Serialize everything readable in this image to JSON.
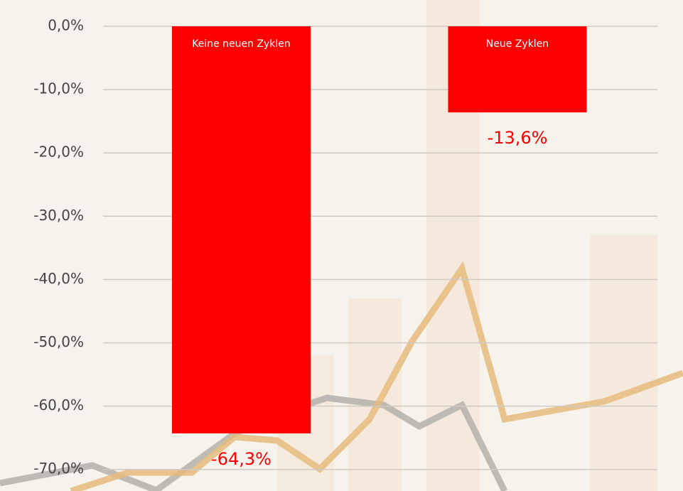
{
  "chart_data": {
    "type": "bar",
    "categories": [
      "Keine neuen Zyklen",
      "Neue Zyklen"
    ],
    "values": [
      -64.3,
      -13.6
    ],
    "value_labels": [
      "-64,3%",
      "-13,6%"
    ],
    "color": "#ff0000",
    "ylim": [
      -73.4,
      0
    ],
    "yticks": [
      {
        "value": 0,
        "label": "0,0%"
      },
      {
        "value": -10,
        "label": "-10,0%"
      },
      {
        "value": -20,
        "label": "-20,0%"
      },
      {
        "value": -30,
        "label": "-30,0%"
      },
      {
        "value": -40,
        "label": "-40,0%"
      },
      {
        "value": -50,
        "label": "-50,0%"
      },
      {
        "value": -60,
        "label": "-60,0%"
      },
      {
        "value": -70,
        "label": "-70,0%"
      }
    ],
    "grid": true
  }
}
